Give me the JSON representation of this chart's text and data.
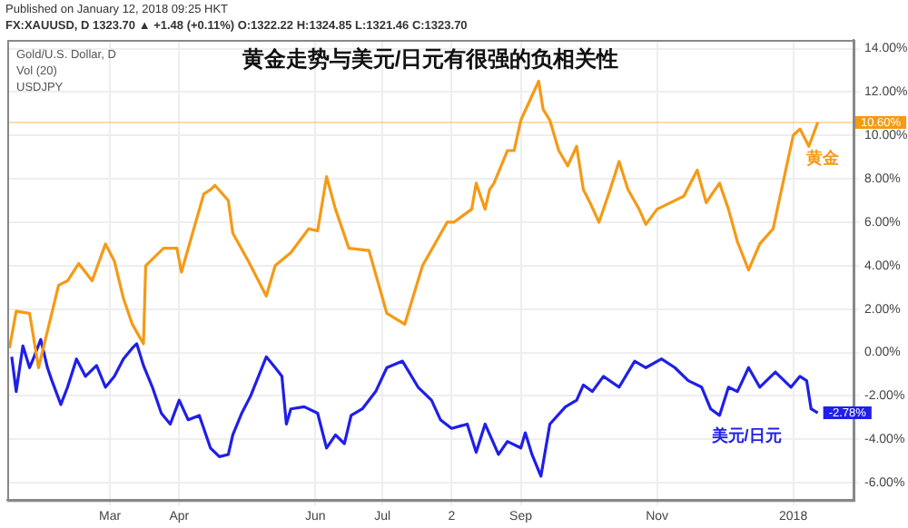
{
  "chart_data": {
    "type": "line",
    "title": "黄金走势与美元/日元有很强的负相关性",
    "annotations": [
      "Published on January 12, 2018 09:25 HKT",
      "FX:XAUUSD, D 1323.70 ▲ +1.48 (+0.11%) O:1322.22 H:1324.85 L:1321.46 C:1323.70",
      "Gold/U.S. Dollar, D",
      "Vol (20)",
      "USDJPY"
    ],
    "series": [
      {
        "name": "黄金",
        "color": "#f59a16",
        "x": [
          "2017-01-15",
          "2017-01-18",
          "2017-01-24",
          "2017-01-28",
          "2017-02-06",
          "2017-02-10",
          "2017-02-15",
          "2017-02-21",
          "2017-02-27",
          "2017-03-03",
          "2017-03-07",
          "2017-03-11",
          "2017-03-16",
          "2017-03-17",
          "2017-03-25",
          "2017-03-31",
          "2017-04-02",
          "2017-04-12",
          "2017-04-15",
          "2017-04-17",
          "2017-04-23",
          "2017-04-25",
          "2017-05-02",
          "2017-05-10",
          "2017-05-14",
          "2017-05-21",
          "2017-05-29",
          "2017-06-02",
          "2017-06-06",
          "2017-06-10",
          "2017-06-16",
          "2017-06-25",
          "2017-07-03",
          "2017-07-11",
          "2017-07-19",
          "2017-07-30",
          "2017-08-02",
          "2017-08-10",
          "2017-08-12",
          "2017-08-16",
          "2017-08-18",
          "2017-08-20",
          "2017-08-26",
          "2017-08-29",
          "2017-09-01",
          "2017-09-05",
          "2017-09-09",
          "2017-09-11",
          "2017-09-14",
          "2017-09-18",
          "2017-09-22",
          "2017-09-26",
          "2017-09-29",
          "2017-10-02",
          "2017-10-06",
          "2017-10-11",
          "2017-10-15",
          "2017-10-19",
          "2017-10-24",
          "2017-10-27",
          "2017-11-01",
          "2017-11-07",
          "2017-11-13",
          "2017-11-19",
          "2017-11-23",
          "2017-11-29",
          "2017-12-03",
          "2017-12-07",
          "2017-12-12",
          "2017-12-17",
          "2017-12-23",
          "2017-12-28",
          "2018-01-01",
          "2018-01-04",
          "2018-01-08",
          "2018-01-12"
        ],
        "values": [
          0.2,
          1.9,
          1.8,
          -0.7,
          3.1,
          3.3,
          4.1,
          3.3,
          5.0,
          4.2,
          2.5,
          1.3,
          0.4,
          4.0,
          4.8,
          4.8,
          3.7,
          7.3,
          7.5,
          7.7,
          7.0,
          5.5,
          4.2,
          2.6,
          4.0,
          4.6,
          5.7,
          5.6,
          8.1,
          6.6,
          4.8,
          4.7,
          1.8,
          1.3,
          4.0,
          6.0,
          6.0,
          6.6,
          7.8,
          6.6,
          7.5,
          7.8,
          9.3,
          9.3,
          10.7,
          11.6,
          12.5,
          11.2,
          10.7,
          9.3,
          8.6,
          9.5,
          7.5,
          6.9,
          6.0,
          7.5,
          8.8,
          7.5,
          6.6,
          5.9,
          6.6,
          6.9,
          7.2,
          8.4,
          6.9,
          7.8,
          6.6,
          5.1,
          3.8,
          5.0,
          5.7,
          8.1,
          10.0,
          10.3,
          9.5,
          10.6
        ]
      },
      {
        "name": "美元/日元",
        "color": "#1f1fe8",
        "x": [
          "2017-01-16",
          "2017-01-18",
          "2017-01-21",
          "2017-01-24",
          "2017-01-26",
          "2017-01-29",
          "2017-02-01",
          "2017-02-03",
          "2017-02-07",
          "2017-02-10",
          "2017-02-14",
          "2017-02-18",
          "2017-02-23",
          "2017-02-27",
          "2017-03-03",
          "2017-03-07",
          "2017-03-11",
          "2017-03-13",
          "2017-03-16",
          "2017-03-20",
          "2017-03-24",
          "2017-03-28",
          "2017-04-01",
          "2017-04-05",
          "2017-04-10",
          "2017-04-15",
          "2017-04-19",
          "2017-04-23",
          "2017-04-25",
          "2017-04-29",
          "2017-05-03",
          "2017-05-10",
          "2017-05-14",
          "2017-05-17",
          "2017-05-19",
          "2017-05-21",
          "2017-05-27",
          "2017-06-02",
          "2017-06-06",
          "2017-06-10",
          "2017-06-14",
          "2017-06-17",
          "2017-06-22",
          "2017-06-28",
          "2017-07-03",
          "2017-07-10",
          "2017-07-17",
          "2017-07-23",
          "2017-07-27",
          "2017-08-01",
          "2017-08-08",
          "2017-08-12",
          "2017-08-16",
          "2017-08-22",
          "2017-08-26",
          "2017-09-01",
          "2017-09-03",
          "2017-09-06",
          "2017-09-10",
          "2017-09-14",
          "2017-09-21",
          "2017-09-26",
          "2017-09-29",
          "2017-10-03",
          "2017-10-08",
          "2017-10-15",
          "2017-10-22",
          "2017-10-27",
          "2017-11-03",
          "2017-11-09",
          "2017-11-15",
          "2017-11-21",
          "2017-11-25",
          "2017-11-29",
          "2017-12-03",
          "2017-12-07",
          "2017-12-12",
          "2017-12-17",
          "2017-12-24",
          "2017-12-31",
          "2018-01-04",
          "2018-01-07",
          "2018-01-09",
          "2018-01-12"
        ],
        "values": [
          -0.2,
          -1.8,
          0.3,
          -0.7,
          -0.2,
          0.6,
          -0.7,
          -1.3,
          -2.4,
          -1.6,
          -0.3,
          -1.1,
          -0.6,
          -1.6,
          -1.1,
          -0.3,
          0.2,
          0.4,
          -0.6,
          -1.6,
          -2.8,
          -3.3,
          -2.2,
          -3.1,
          -2.9,
          -4.4,
          -4.8,
          -4.7,
          -3.8,
          -2.8,
          -2.0,
          -0.2,
          -0.7,
          -1.1,
          -3.3,
          -2.6,
          -2.5,
          -2.8,
          -4.4,
          -3.8,
          -4.2,
          -2.9,
          -2.6,
          -1.8,
          -0.7,
          -0.4,
          -1.6,
          -2.2,
          -3.1,
          -3.5,
          -3.3,
          -4.6,
          -3.3,
          -4.7,
          -4.1,
          -4.4,
          -3.7,
          -4.7,
          -5.7,
          -3.3,
          -2.5,
          -2.2,
          -1.5,
          -1.8,
          -1.1,
          -1.6,
          -0.4,
          -0.7,
          -0.3,
          -0.7,
          -1.3,
          -1.6,
          -2.6,
          -2.9,
          -1.6,
          -1.8,
          -0.7,
          -1.6,
          -0.9,
          -1.6,
          -1.1,
          -1.3,
          -2.6,
          -2.78
        ],
        "value_labels": [
          null,
          null,
          null,
          null,
          null,
          null,
          null,
          null,
          null,
          null,
          null,
          null,
          null,
          null,
          null,
          null,
          null,
          null,
          null,
          null,
          null,
          null,
          null,
          null,
          null,
          null,
          null,
          null,
          null,
          null,
          null,
          null,
          null,
          null,
          null,
          null,
          null,
          null,
          null,
          null,
          null,
          null,
          null,
          null,
          null,
          null,
          null,
          null,
          null,
          null,
          null,
          null,
          null,
          null,
          null,
          null,
          null,
          null,
          null,
          null,
          null,
          null,
          null,
          null,
          null,
          null,
          null,
          null,
          null,
          null,
          null,
          null,
          null,
          null,
          null,
          null,
          null,
          null,
          null,
          null,
          null,
          null,
          null,
          "-2.78%"
        ]
      }
    ],
    "xlim": [
      "2017-01-14",
      "2018-01-28"
    ],
    "xticks": [
      {
        "value": "2017-03-01",
        "label": "Mar"
      },
      {
        "value": "2017-04-01",
        "label": "Apr"
      },
      {
        "value": "2017-06-01",
        "label": "Jun"
      },
      {
        "value": "2017-07-01",
        "label": "Jul"
      },
      {
        "value": "2017-08-01",
        "label": "2"
      },
      {
        "value": "2017-09-01",
        "label": "Sep"
      },
      {
        "value": "2017-11-01",
        "label": "Nov"
      },
      {
        "value": "2018-01-01",
        "label": "2018"
      }
    ],
    "ylim": [
      -6.8,
      14.4
    ],
    "yticks": [
      {
        "value": -6,
        "label": "-6.00%"
      },
      {
        "value": -4,
        "label": "-4.00%"
      },
      {
        "value": -2,
        "label": "-2.00%"
      },
      {
        "value": 0,
        "label": "0.00%"
      },
      {
        "value": 2,
        "label": "2.00%"
      },
      {
        "value": 4,
        "label": "4.00%"
      },
      {
        "value": 6,
        "label": "6.00%"
      },
      {
        "value": 8,
        "label": "8.00%"
      },
      {
        "value": 10,
        "label": "10.00%"
      },
      {
        "value": 12,
        "label": "12.00%"
      },
      {
        "value": 14,
        "label": "14.00%"
      }
    ],
    "ref_lines": [
      {
        "axis": "y",
        "value": 10.6,
        "label": "10.60%",
        "color": "#f59a16"
      }
    ],
    "grid": true,
    "legend": false,
    "marker": "none",
    "line_style": "solid"
  }
}
